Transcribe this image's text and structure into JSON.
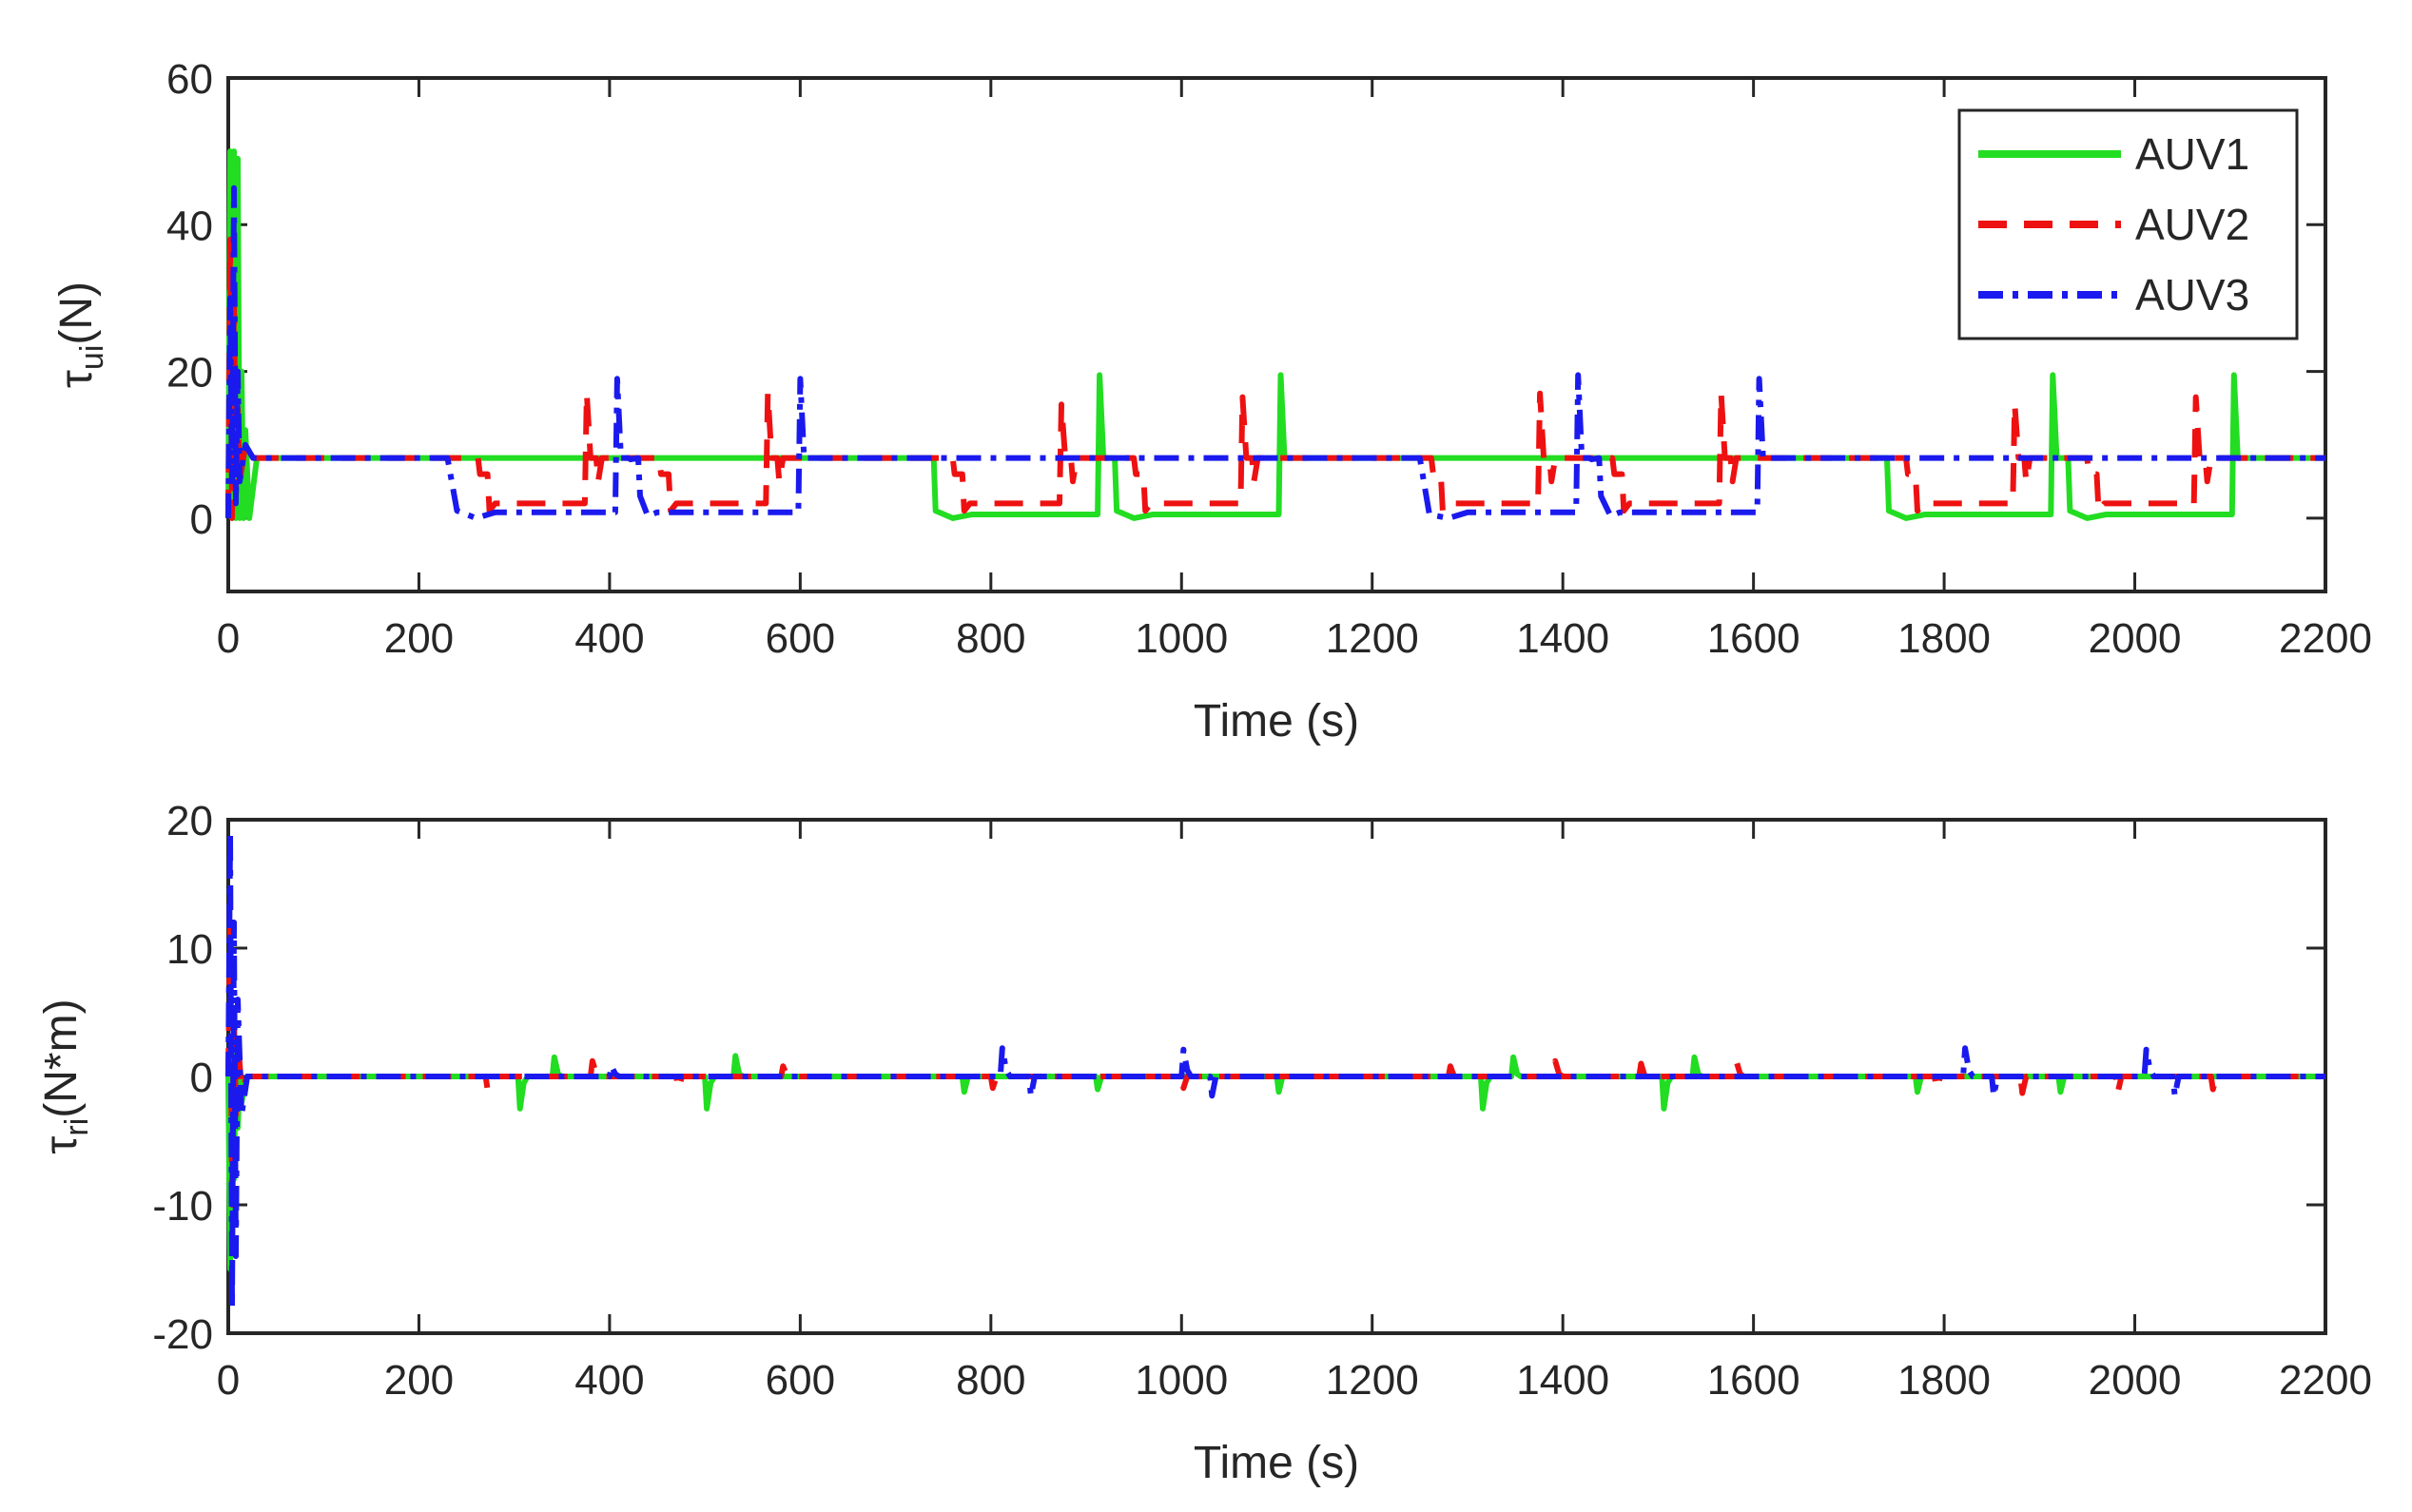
{
  "chart_data": [
    {
      "type": "line",
      "title": "",
      "xlabel": "Time (s)",
      "ylabel_symbol": "τ",
      "ylabel_sub": "ui",
      "ylabel_unit": "(N)",
      "xlim": [
        0,
        2200
      ],
      "ylim": [
        -10,
        60
      ],
      "xticks": [
        0,
        200,
        400,
        600,
        800,
        1000,
        1200,
        1400,
        1600,
        1800,
        2000,
        2200
      ],
      "yticks": [
        0,
        20,
        40,
        60
      ],
      "legend": {
        "position": "top-right",
        "entries": [
          "AUV1",
          "AUV2",
          "AUV3"
        ]
      },
      "series": [
        {
          "name": "AUV1",
          "color": "#22dd22",
          "style": "solid",
          "x": [
            0,
            2,
            4,
            6,
            8,
            10,
            12,
            14,
            16,
            18,
            22,
            30,
            740,
            742,
            760,
            780,
            912,
            914,
            918,
            930,
            932,
            950,
            970,
            1102,
            1104,
            1108,
            1740,
            1742,
            1760,
            1780,
            1912,
            1914,
            1918,
            1930,
            1932,
            1950,
            1970,
            2102,
            2104,
            2108,
            2200
          ],
          "values": [
            0,
            50,
            0,
            50,
            0,
            49,
            0,
            20,
            0,
            12,
            0,
            8.2,
            8.2,
            1,
            0,
            0.5,
            0.5,
            19.5,
            8.2,
            8.2,
            1,
            0,
            0.5,
            0.5,
            19.5,
            8.2,
            8.2,
            1,
            0,
            0.5,
            0.5,
            19.5,
            8.2,
            8.2,
            1,
            0,
            0.5,
            0.5,
            19.5,
            8.2,
            8.2
          ]
        },
        {
          "name": "AUV2",
          "color": "#ee1111",
          "style": "dashed",
          "x": [
            0,
            2,
            4,
            6,
            8,
            10,
            12,
            18,
            26,
            262,
            264,
            272,
            274,
            280,
            290,
            374,
            376,
            380,
            386,
            388,
            392,
            452,
            454,
            462,
            464,
            470,
            480,
            564,
            566,
            570,
            576,
            578,
            582,
            760,
            762,
            770,
            772,
            778,
            788,
            872,
            874,
            878,
            884,
            886,
            890,
            950,
            952,
            960,
            962,
            968,
            978,
            1062,
            1064,
            1068,
            1074,
            1076,
            1080,
            1262,
            1264,
            1272,
            1274,
            1280,
            1290,
            1374,
            1376,
            1380,
            1386,
            1388,
            1392,
            1452,
            1454,
            1462,
            1464,
            1470,
            1480,
            1564,
            1566,
            1570,
            1576,
            1578,
            1582,
            1760,
            1762,
            1770,
            1772,
            1778,
            1788,
            1872,
            1874,
            1878,
            1884,
            1886,
            1890,
            1950,
            1952,
            1960,
            1962,
            1968,
            1978,
            2062,
            2064,
            2068,
            2074,
            2076,
            2080,
            2200
          ],
          "values": [
            0,
            38,
            0,
            30,
            3,
            15,
            5,
            10,
            8.2,
            8.2,
            6,
            6,
            1,
            2,
            2,
            2,
            17,
            8.2,
            8.2,
            5,
            8.2,
            8.2,
            6,
            6,
            1,
            2,
            2,
            2,
            17,
            8.2,
            8.2,
            5,
            8.2,
            8.2,
            6,
            6,
            1,
            2,
            2,
            2,
            15.5,
            8.2,
            8.2,
            5,
            8.2,
            8.2,
            6,
            6,
            1,
            2,
            2,
            2,
            16.5,
            8.2,
            8.2,
            5,
            8.2,
            8.2,
            6,
            6,
            1,
            2,
            2,
            2,
            17,
            8.2,
            8.2,
            5,
            8.2,
            8.2,
            6,
            6,
            1,
            2,
            2,
            2,
            17,
            8.2,
            8.2,
            5,
            8.2,
            8.2,
            6,
            6,
            1,
            2,
            2,
            2,
            15.5,
            8.2,
            8.2,
            5,
            8.2,
            8.2,
            6,
            6,
            1,
            2,
            2,
            2,
            16.5,
            8.2,
            8.2,
            5,
            8.2,
            8.2
          ]
        },
        {
          "name": "AUV3",
          "color": "#1a1aee",
          "style": "dashdot",
          "x": [
            0,
            2,
            4,
            6,
            8,
            10,
            12,
            18,
            26,
            230,
            240,
            260,
            280,
            406,
            408,
            412,
            420,
            422,
            430,
            432,
            440,
            450,
            598,
            600,
            604,
            1250,
            1260,
            1280,
            1300,
            1414,
            1416,
            1420,
            1428,
            1430,
            1438,
            1440,
            1450,
            1460,
            1604,
            1606,
            1610,
            2200
          ],
          "values": [
            0,
            30,
            5,
            45,
            2,
            20,
            5,
            10,
            8.2,
            8.2,
            1,
            0,
            0.8,
            0.8,
            19,
            8.2,
            8.2,
            8,
            8.2,
            3,
            0.3,
            0.8,
            0.8,
            19,
            8.2,
            8.2,
            0.5,
            0,
            0.8,
            0.8,
            19.5,
            8.2,
            8.2,
            8,
            8.2,
            3,
            0.3,
            0.8,
            0.8,
            19,
            8.2,
            8.2
          ]
        }
      ]
    },
    {
      "type": "line",
      "title": "",
      "xlabel": "Time (s)",
      "ylabel_symbol": "τ",
      "ylabel_sub": "ri",
      "ylabel_unit": "(N*m)",
      "xlim": [
        0,
        2200
      ],
      "ylim": [
        -20,
        20
      ],
      "xticks": [
        0,
        200,
        400,
        600,
        800,
        1000,
        1200,
        1400,
        1600,
        1800,
        2000,
        2200
      ],
      "yticks": [
        -20,
        -10,
        0,
        10,
        20
      ],
      "series": [
        {
          "name": "AUV1",
          "color": "#22dd22",
          "style": "solid",
          "x": [
            0,
            2,
            4,
            6,
            8,
            10,
            12,
            14,
            20,
            30,
            304,
            306,
            310,
            314,
            340,
            342,
            346,
            350,
            500,
            502,
            506,
            510,
            530,
            532,
            536,
            540,
            770,
            772,
            776,
            780,
            910,
            912,
            916,
            920,
            1100,
            1102,
            1106,
            1110,
            1314,
            1316,
            1320,
            1324,
            1346,
            1348,
            1352,
            1356,
            1504,
            1506,
            1510,
            1514,
            1536,
            1538,
            1542,
            1546,
            1770,
            1772,
            1776,
            1780,
            1920,
            1922,
            1926,
            1930,
            2200
          ],
          "values": [
            0,
            -15,
            2,
            -8,
            1,
            -4,
            0,
            -2,
            0,
            0,
            0,
            -2.5,
            -0.5,
            0,
            0,
            1.5,
            0.2,
            0,
            0,
            -2.5,
            -0.5,
            0,
            0,
            1.6,
            0.2,
            0,
            0,
            -1.2,
            0,
            0,
            0,
            -1,
            0,
            0,
            0,
            -1.2,
            0,
            0,
            0,
            -2.5,
            -0.5,
            0,
            0,
            1.5,
            0.2,
            0,
            0,
            -2.5,
            -0.5,
            0,
            0,
            1.5,
            0.2,
            0,
            0,
            -1.2,
            0,
            0,
            0,
            -1.2,
            0,
            0,
            0
          ]
        },
        {
          "name": "AUV2",
          "color": "#ee1111",
          "style": "dashed",
          "x": [
            0,
            2,
            4,
            6,
            8,
            10,
            14,
            20,
            30,
            270,
            272,
            276,
            280,
            380,
            382,
            386,
            390,
            470,
            472,
            476,
            480,
            580,
            582,
            586,
            590,
            800,
            802,
            806,
            810,
            1000,
            1002,
            1006,
            1010,
            1280,
            1282,
            1286,
            1290,
            1390,
            1392,
            1396,
            1400,
            1480,
            1482,
            1486,
            1490,
            1580,
            1582,
            1586,
            1590,
            1790,
            1792,
            1796,
            1800,
            1880,
            1882,
            1886,
            1890,
            1980,
            1982,
            1986,
            1990,
            2080,
            2082,
            2086,
            2090,
            2200
          ],
          "values": [
            0,
            12,
            -10,
            5,
            -3,
            3,
            -1,
            0,
            0,
            0,
            -1,
            0,
            0,
            0,
            1.2,
            0.2,
            0,
            0,
            -1,
            0,
            0,
            0,
            0.8,
            0.1,
            0,
            0,
            -0.9,
            0,
            0,
            0,
            -0.9,
            0,
            0,
            0,
            0.8,
            0,
            0,
            0,
            1.2,
            0.2,
            0,
            0,
            1,
            0,
            0,
            0,
            1.2,
            0.2,
            0,
            0,
            -1,
            0,
            0,
            0,
            -1.3,
            0,
            0,
            0,
            -1.3,
            0,
            0,
            0,
            -1,
            0,
            0,
            0
          ]
        },
        {
          "name": "AUV3",
          "color": "#1a1aee",
          "style": "dashdot",
          "x": [
            0,
            2,
            4,
            6,
            8,
            10,
            14,
            20,
            30,
            400,
            402,
            406,
            410,
            810,
            812,
            816,
            820,
            840,
            842,
            846,
            850,
            1000,
            1002,
            1006,
            1010,
            1030,
            1032,
            1036,
            1040,
            1820,
            1822,
            1826,
            1830,
            1850,
            1852,
            1856,
            1860,
            2010,
            2012,
            2016,
            2020,
            2040,
            2042,
            2046,
            2050,
            2200
          ],
          "values": [
            0,
            19,
            -18,
            12,
            -14,
            6,
            -3,
            0,
            0,
            0,
            0.8,
            0.2,
            0,
            0,
            2.2,
            0.5,
            0,
            0,
            -1.5,
            0,
            0,
            0,
            2.1,
            0.5,
            0,
            0,
            -1.5,
            0,
            0,
            0,
            2.2,
            0.5,
            0,
            0,
            -1.5,
            0,
            0,
            0,
            2.1,
            0.5,
            0,
            0,
            -1.5,
            0,
            0,
            0
          ]
        }
      ]
    }
  ]
}
